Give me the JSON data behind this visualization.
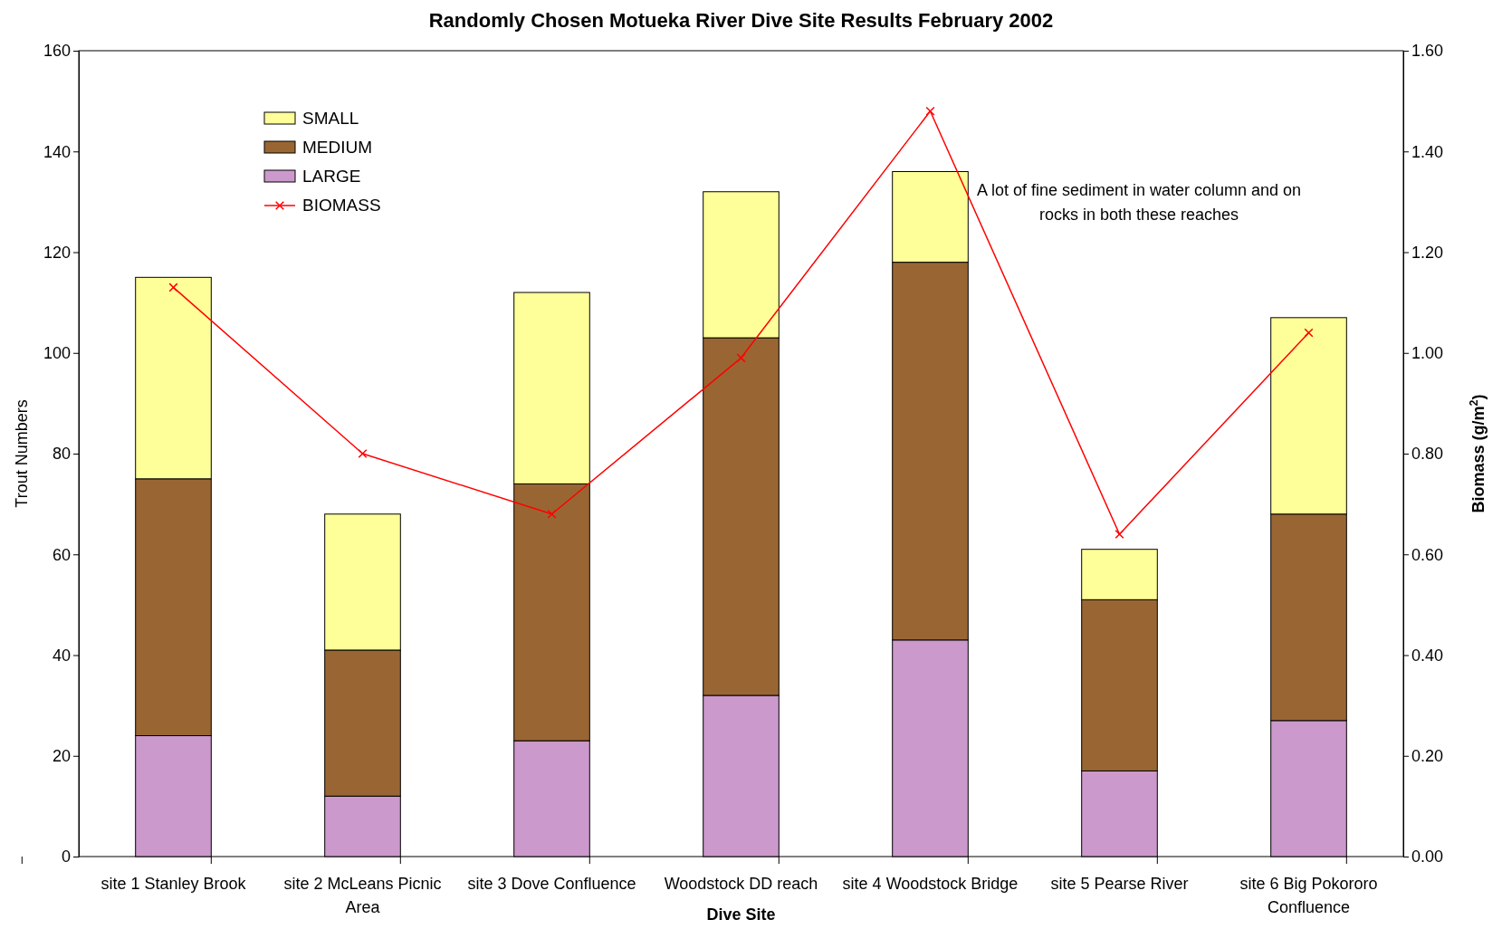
{
  "chart_data": {
    "type": "bar",
    "stacked": true,
    "title": "Randomly Chosen Motueka River Dive Site Results February 2002",
    "xlabel": "Dive Site",
    "ylabel": "Trout Numbers",
    "y2label": "Biomass (g/m$^{2}$)",
    "categories": [
      "site 1  Stanley Brook",
      "site 2  McLeans Picnic Area",
      "site 3  Dove Confluence",
      "Woodstock DD reach",
      "site 4  Woodstock Bridge",
      "site 5   Pearse River",
      "site 6   Big Pokororo Confluence"
    ],
    "series": [
      {
        "name": "LARGE",
        "color": "#cc99cc",
        "values": [
          24,
          12,
          23,
          32,
          43,
          17,
          27
        ]
      },
      {
        "name": "MEDIUM",
        "color": "#996633",
        "values": [
          51,
          29,
          51,
          71,
          75,
          34,
          41
        ]
      },
      {
        "name": "SMALL",
        "color": "#ffff99",
        "values": [
          40,
          27,
          38,
          29,
          18,
          10,
          39
        ]
      },
      {
        "name": "BIOMASS",
        "type": "line",
        "axis": "y2",
        "color": "#ff0000",
        "marker": "cross",
        "values": [
          1.13,
          0.8,
          0.68,
          0.99,
          1.48,
          0.64,
          1.04
        ]
      }
    ],
    "ylim": [
      0,
      160
    ],
    "yticks": [
      0,
      20,
      40,
      60,
      80,
      100,
      120,
      140,
      160
    ],
    "y2lim": [
      0,
      1.6
    ],
    "y2ticks": [
      {
        "value": 0,
        "label": "0.00"
      },
      {
        "value": 0.2,
        "label": "0.20"
      },
      {
        "value": 0.4,
        "label": "0.40"
      },
      {
        "value": 0.6,
        "label": "0.60"
      },
      {
        "value": 0.8,
        "label": "0.80"
      },
      {
        "value": 1,
        "label": "1.00"
      },
      {
        "value": 1.2,
        "label": "1.20"
      },
      {
        "value": 1.4,
        "label": "1.40"
      },
      {
        "value": 1.6,
        "label": "1.60"
      }
    ],
    "legend": "top left",
    "grid": false,
    "annotations": [
      "A lot of fine sediment  in water column and on rocks in both these reaches"
    ]
  }
}
